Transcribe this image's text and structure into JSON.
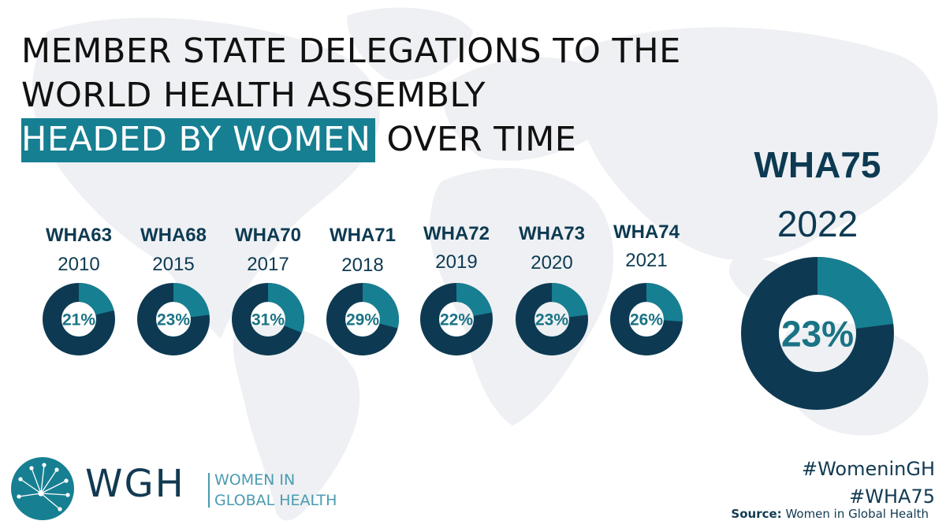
{
  "title": {
    "line1": "MEMBER STATE DELEGATIONS TO THE",
    "line2": "WORLD HEALTH ASSEMBLY",
    "highlight": "HEADED BY WOMEN",
    "line3_rest": " OVER TIME"
  },
  "chart_data": {
    "type": "donut",
    "title": "MEMBER STATE DELEGATIONS TO THE WORLD HEALTH ASSEMBLY HEADED BY WOMEN OVER TIME",
    "items": [
      {
        "assembly": "WHA63",
        "year": "2010",
        "value": 21,
        "label": "21%"
      },
      {
        "assembly": "WHA68",
        "year": "2015",
        "value": 23,
        "label": "23%"
      },
      {
        "assembly": "WHA70",
        "year": "2017",
        "value": 31,
        "label": "31%"
      },
      {
        "assembly": "WHA71",
        "year": "2018",
        "value": 29,
        "label": "29%"
      },
      {
        "assembly": "WHA72",
        "year": "2019",
        "value": 22,
        "label": "22%"
      },
      {
        "assembly": "WHA73",
        "year": "2020",
        "value": 23,
        "label": "23%"
      },
      {
        "assembly": "WHA74",
        "year": "2021",
        "value": 26,
        "label": "26%"
      }
    ],
    "featured": {
      "assembly": "WHA75",
      "year": "2022",
      "value": 23,
      "label": "23%"
    },
    "colors": {
      "remainder": "#0d3a52",
      "share": "#177f92",
      "text": "#1a7385",
      "header": "#0d3a52"
    }
  },
  "hashtags": [
    "#WomeninGH",
    "#WHA75"
  ],
  "source": {
    "label": "Source:",
    "text": " Women in Global Health"
  },
  "logo": {
    "abbr": "WGH",
    "line1": "WOMEN IN",
    "line2": "GLOBAL HEALTH"
  },
  "colors": {
    "map": "#eef0f3",
    "accent": "#177f92",
    "navy": "#0d3a52"
  }
}
